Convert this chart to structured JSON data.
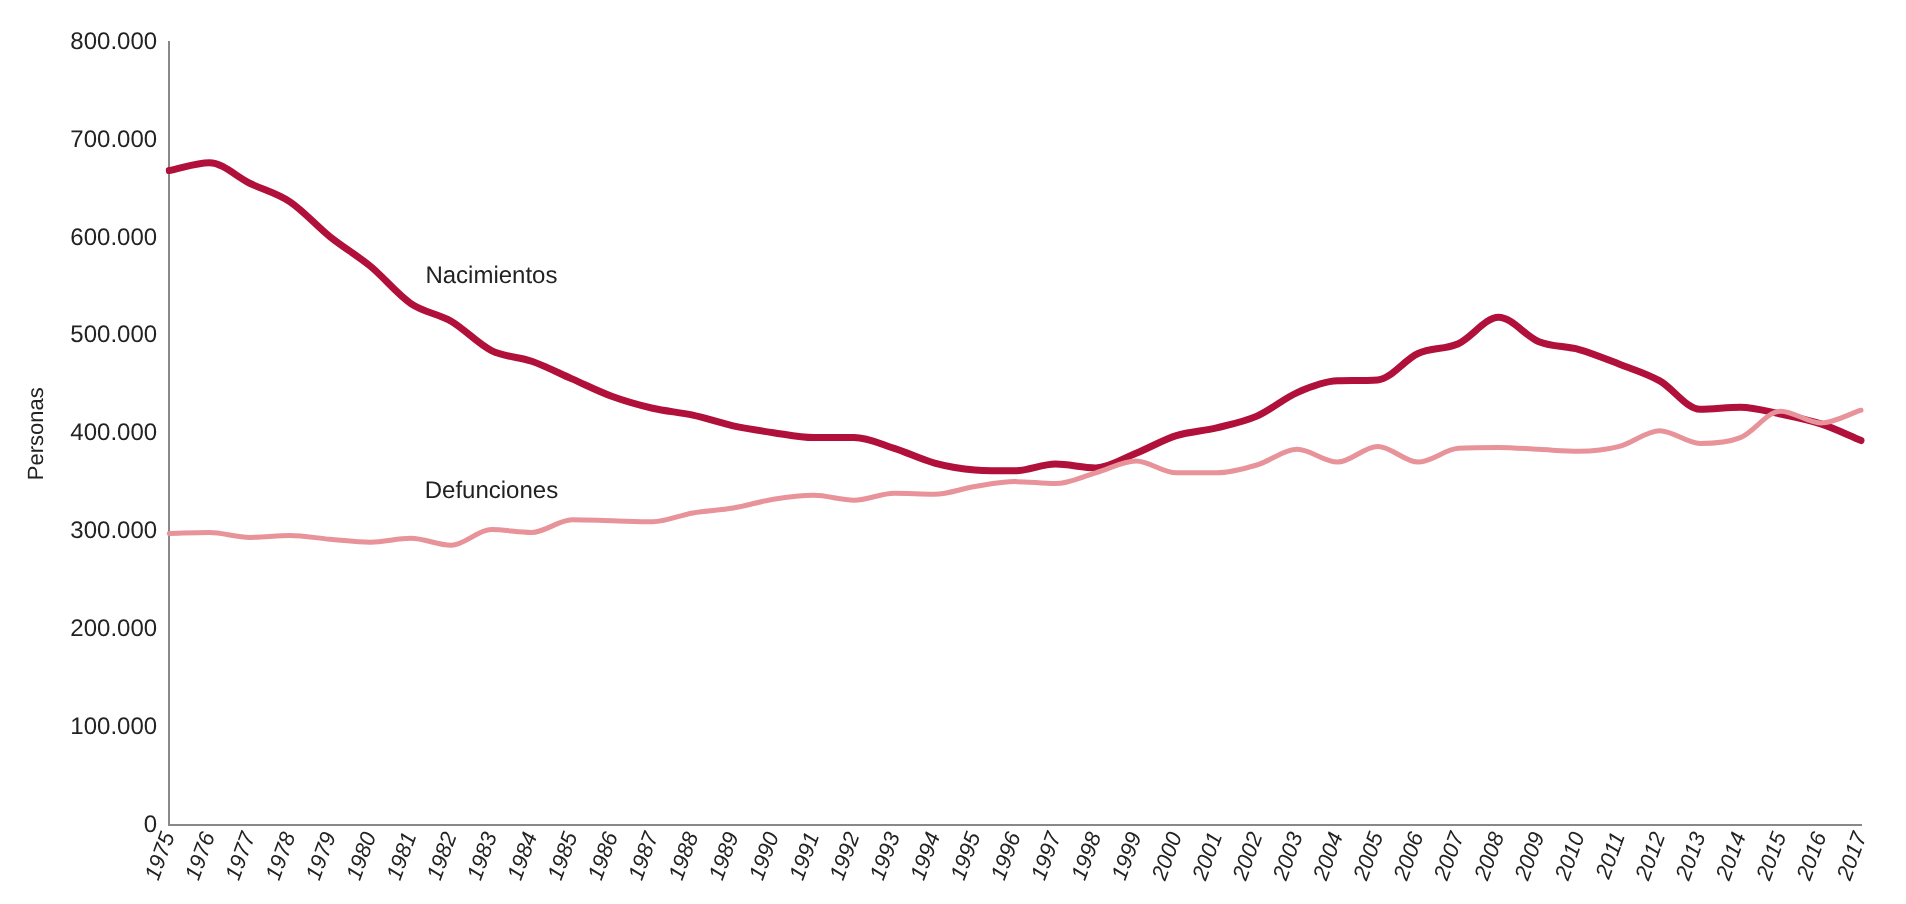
{
  "chart_data": {
    "type": "line",
    "ylabel": "Personas",
    "categories": [
      "1975",
      "1976",
      "1977",
      "1978",
      "1979",
      "1980",
      "1981",
      "1982",
      "1983",
      "1984",
      "1985",
      "1986",
      "1987",
      "1988",
      "1989",
      "1990",
      "1991",
      "1992",
      "1993",
      "1994",
      "1995",
      "1996",
      "1997",
      "1998",
      "1999",
      "2000",
      "2001",
      "2002",
      "2003",
      "2004",
      "2005",
      "2006",
      "2007",
      "2008",
      "2009",
      "2010",
      "2011",
      "2012",
      "2013",
      "2014",
      "2015",
      "2016",
      "2017"
    ],
    "series": [
      {
        "name": "Nacimientos",
        "color": "#b0103a",
        "values": [
          669000,
          677000,
          656000,
          637000,
          601000,
          571000,
          533000,
          515000,
          485000,
          474000,
          456000,
          438000,
          426000,
          419000,
          408000,
          401000,
          396000,
          396000,
          385000,
          370000,
          363000,
          362000,
          369000,
          365000,
          380000,
          398000,
          406000,
          418000,
          442000,
          454000,
          455000,
          482000,
          492000,
          519000,
          494000,
          486000,
          471000,
          454000,
          425000,
          427000,
          420000,
          410000,
          393000
        ]
      },
      {
        "name": "Defunciones",
        "color": "#e8929a",
        "values": [
          298000,
          299000,
          294000,
          296000,
          292000,
          289000,
          293000,
          286000,
          302000,
          299000,
          312000,
          311000,
          310000,
          319000,
          324000,
          333000,
          337000,
          332000,
          339000,
          338000,
          346000,
          351000,
          349000,
          360000,
          372000,
          360000,
          360000,
          368000,
          384000,
          371000,
          387000,
          371000,
          385000,
          386000,
          384000,
          382000,
          387000,
          403000,
          390000,
          396000,
          423000,
          411000,
          424000
        ]
      }
    ],
    "ylim": [
      0,
      800000
    ],
    "yticks": [
      0,
      {
        "value": 100000,
        "label": "100.000"
      },
      {
        "value": 200000,
        "label": "200.000"
      },
      {
        "value": 300000,
        "label": "300.000"
      },
      {
        "value": 400000,
        "label": "400.000"
      },
      {
        "value": 500000,
        "label": "500.000"
      },
      {
        "value": 600000,
        "label": "600.000"
      },
      {
        "value": 700000,
        "label": "700.000"
      },
      {
        "value": 800000,
        "label": "800.000"
      }
    ],
    "grid": false,
    "legend": false,
    "marker": "none",
    "line_style": "solid"
  }
}
